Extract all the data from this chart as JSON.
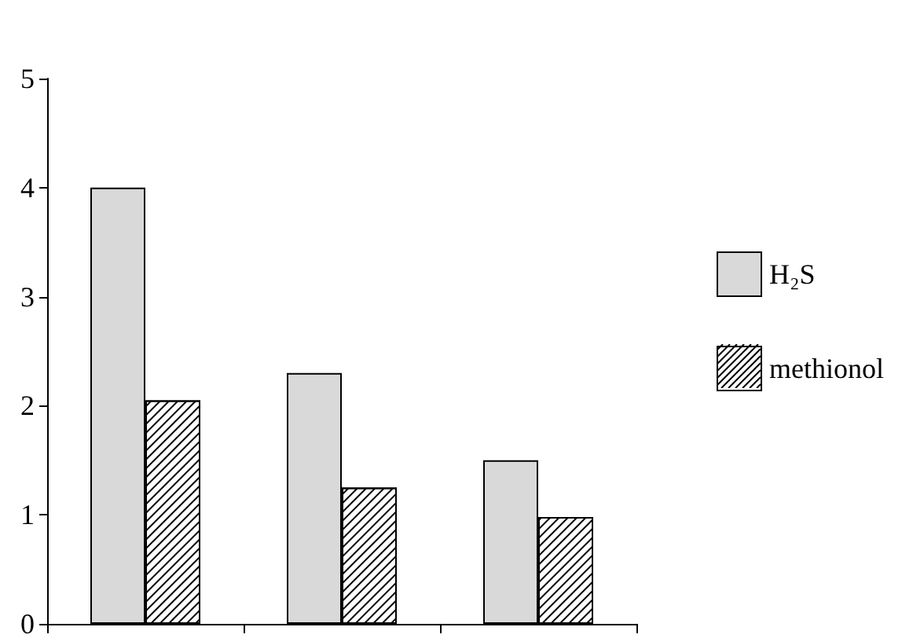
{
  "chart_data": {
    "type": "bar",
    "categories": [
      null,
      null,
      null
    ],
    "series": [
      {
        "name": "H₂S",
        "color": "#d9d9d9",
        "values": [
          4.0,
          2.3,
          1.5
        ]
      },
      {
        "name": "methionol",
        "color": "#ffffff",
        "values": [
          2.05,
          1.25,
          0.98
        ]
      }
    ],
    "ylim": [
      0,
      5
    ],
    "yticks": [
      0,
      1,
      2,
      3,
      4,
      5
    ],
    "legend": "right"
  }
}
